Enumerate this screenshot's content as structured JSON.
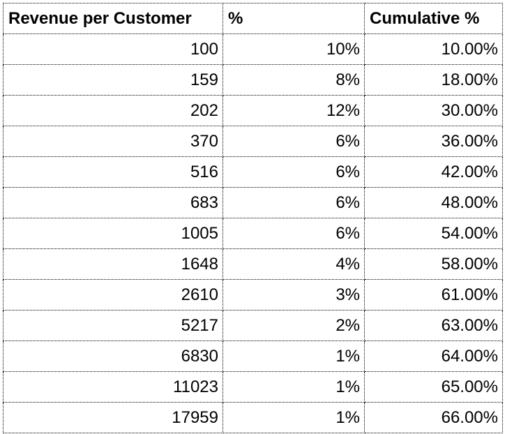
{
  "table": {
    "headers": [
      "Revenue per Customer",
      "%",
      "Cumulative %"
    ],
    "rows": [
      [
        "100",
        "10%",
        "10.00%"
      ],
      [
        "159",
        "8%",
        "18.00%"
      ],
      [
        "202",
        "12%",
        "30.00%"
      ],
      [
        "370",
        "6%",
        "36.00%"
      ],
      [
        "516",
        "6%",
        "42.00%"
      ],
      [
        "683",
        "6%",
        "48.00%"
      ],
      [
        "1005",
        "6%",
        "54.00%"
      ],
      [
        "1648",
        "4%",
        "58.00%"
      ],
      [
        "2610",
        "3%",
        "61.00%"
      ],
      [
        "5217",
        "2%",
        "63.00%"
      ],
      [
        "6830",
        "1%",
        "64.00%"
      ],
      [
        "11023",
        "1%",
        "65.00%"
      ],
      [
        "17959",
        "1%",
        "66.00%"
      ]
    ]
  }
}
